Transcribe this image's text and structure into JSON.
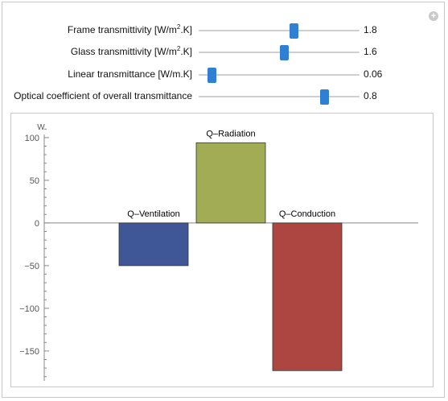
{
  "controls": [
    {
      "id": "frame",
      "label": "Frame transmittivity [W/m",
      "sup": "2",
      "suffix": ".K]",
      "value": "1.8",
      "fraction": 0.59
    },
    {
      "id": "glass",
      "label": "Glass transmittivity [W/m",
      "sup": "2",
      "suffix": ".K]",
      "value": "1.6",
      "fraction": 0.53
    },
    {
      "id": "linear",
      "label": "Linear transmittance [W/m.K]",
      "sup": "",
      "suffix": "",
      "value": "0.06",
      "fraction": 0.08
    },
    {
      "id": "optical",
      "label": "Optical coefficient of overall transmittance",
      "sup": "",
      "suffix": "",
      "value": "0.8",
      "fraction": 0.78
    }
  ],
  "chart_data": {
    "type": "bar",
    "ylabel": "W",
    "ylim": [
      -185,
      115
    ],
    "yticks": [
      100,
      50,
      0,
      -50,
      -100,
      -150
    ],
    "categories": [
      "Q–Ventilation",
      "Q–Radiation",
      "Q–Conduction"
    ],
    "values": [
      -50,
      94,
      -173
    ],
    "colors": [
      "#3f5797",
      "#a2ac55",
      "#ad4641"
    ],
    "grid": false
  }
}
